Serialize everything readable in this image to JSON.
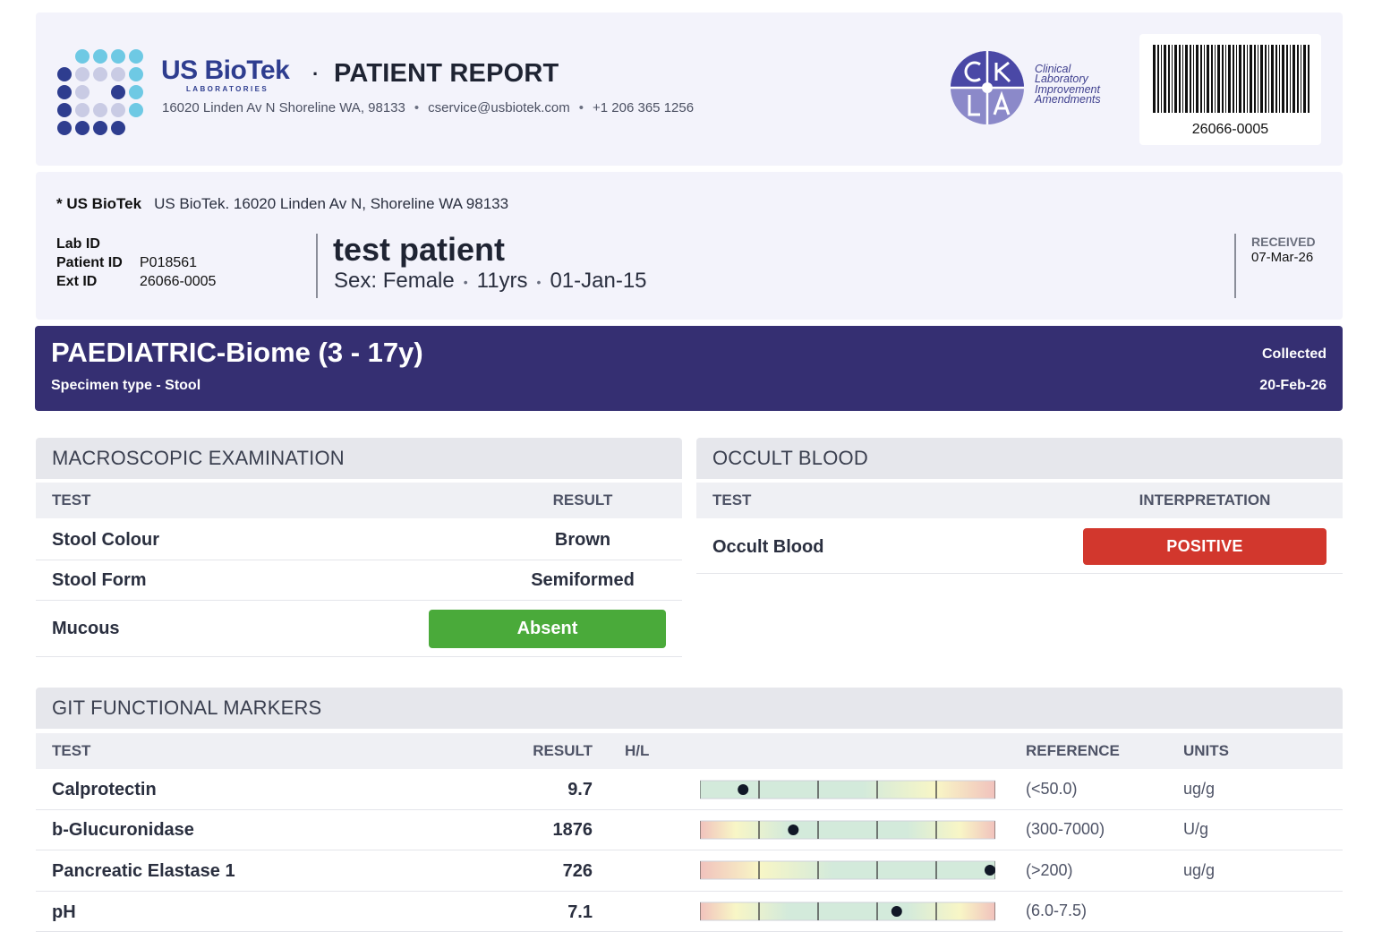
{
  "header": {
    "brand_name": "US BioTek",
    "brand_sub": "LABORATORIES",
    "separator": "·",
    "report_title": "PATIENT REPORT",
    "address": "16020 Linden Av N Shoreline WA, 98133",
    "email": "cservice@usbiotek.com",
    "phone": "+1 206 365 1256",
    "contact_sep": "•",
    "clia_lines": [
      "Clinical",
      "Laboratory",
      "Improvement",
      "Amendments"
    ],
    "barcode_number": "26066-0005"
  },
  "lab": {
    "name": "* US BioTek",
    "address": "US BioTek. 16020 Linden Av N, Shoreline WA 98133"
  },
  "ids": {
    "lab_id_label": "Lab ID",
    "lab_id": "",
    "patient_id_label": "Patient ID",
    "patient_id": "P018561",
    "ext_id_label": "Ext ID",
    "ext_id": "26066-0005"
  },
  "patient": {
    "name": "test patient",
    "sex": "Sex: Female",
    "age": "11yrs",
    "dob": "01-Jan-15",
    "sep": "•"
  },
  "received": {
    "label": "RECEIVED",
    "date": "07-Mar-26"
  },
  "test": {
    "title": "PAEDIATRIC-Biome (3 - 17y)",
    "specimen": "Specimen type - Stool",
    "collected_label": "Collected",
    "collected_date": "20-Feb-26"
  },
  "macroscopic": {
    "title": "MACROSCOPIC EXAMINATION",
    "col_test": "TEST",
    "col_result": "RESULT",
    "rows": [
      {
        "test": "Stool Colour",
        "result": "Brown"
      },
      {
        "test": "Stool Form",
        "result": "Semiformed"
      },
      {
        "test": "Mucous",
        "result": "Absent"
      }
    ]
  },
  "occult": {
    "title": "OCCULT BLOOD",
    "col_test": "TEST",
    "col_interp": "INTERPRETATION",
    "rows": [
      {
        "test": "Occult Blood",
        "result": "POSITIVE"
      }
    ]
  },
  "git": {
    "title": "GIT FUNCTIONAL MARKERS",
    "col_test": "TEST",
    "col_result": "RESULT",
    "col_hl": "H/L",
    "col_reference": "REFERENCE",
    "col_units": "UNITS",
    "rows": [
      {
        "test": "Calprotectin",
        "result": "9.7",
        "hl": "",
        "reference": "(<50.0)",
        "units": "ug/g",
        "gauge_pos": 0.14,
        "gauge_type": "low-good"
      },
      {
        "test": "b-Glucuronidase",
        "result": "1876",
        "hl": "",
        "reference": "(300-7000)",
        "units": "U/g",
        "gauge_pos": 0.31,
        "gauge_type": "range"
      },
      {
        "test": "Pancreatic Elastase 1",
        "result": "726",
        "hl": "",
        "reference": "(>200)",
        "units": "ug/g",
        "gauge_pos": 0.99,
        "gauge_type": "high-good"
      },
      {
        "test": "pH",
        "result": "7.1",
        "hl": "",
        "reference": "(6.0-7.5)",
        "units": "",
        "gauge_pos": 0.66,
        "gauge_type": "range"
      }
    ]
  },
  "colors": {
    "brand_blue": "#2e3d8f",
    "banner": "#352f72",
    "positive": "#d2372d",
    "absent": "#4aaa3a",
    "gauge_green": "#d3eadb",
    "gauge_yellow": "#f8f6c6",
    "gauge_red": "#f1c2bd"
  }
}
